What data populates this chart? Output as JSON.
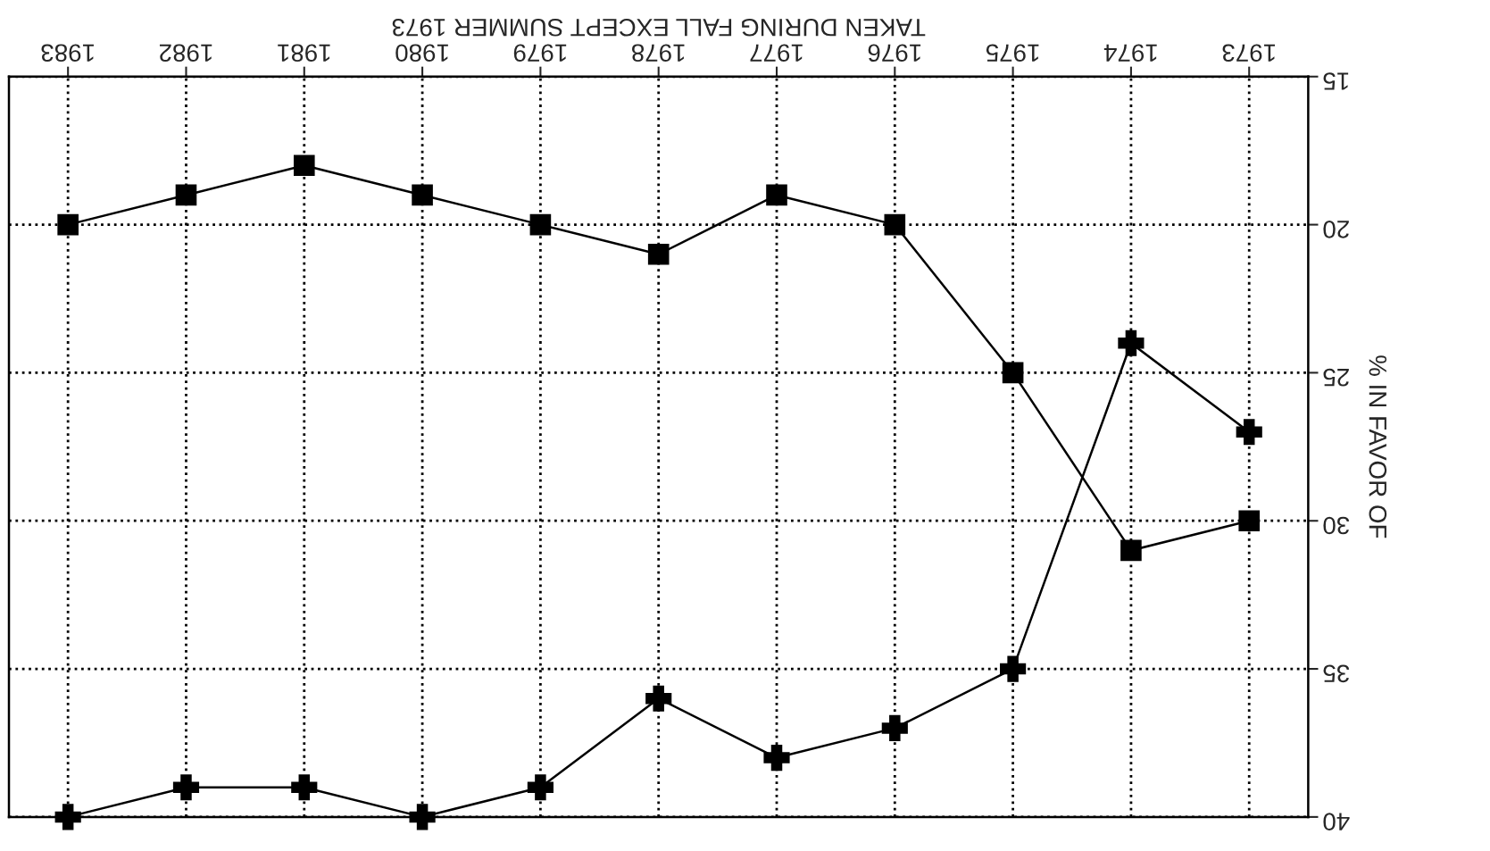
{
  "chart_data": {
    "type": "line",
    "xlabel": "TAKEN DURING FALL EXCEPT SUMMER 1973",
    "ylabel": "% IN FAVOR OF",
    "categories": [
      "1983",
      "1982",
      "1981",
      "1980",
      "1979",
      "1978",
      "1977",
      "1976",
      "1975",
      "1974",
      "1973"
    ],
    "series": [
      {
        "color": "#000000",
        "marker": "square",
        "values": [
          20,
          19,
          18,
          19,
          20,
          21,
          19,
          20,
          25,
          31,
          30
        ]
      },
      {
        "color": "#000000",
        "marker": "cross",
        "values": [
          40,
          39,
          39,
          40,
          39,
          36,
          38,
          37,
          35,
          24,
          27
        ]
      }
    ],
    "ylim": [
      40,
      15
    ],
    "yticks": [
      15,
      20,
      25,
      30,
      35,
      40
    ],
    "grid": true,
    "line_style": "solid"
  }
}
